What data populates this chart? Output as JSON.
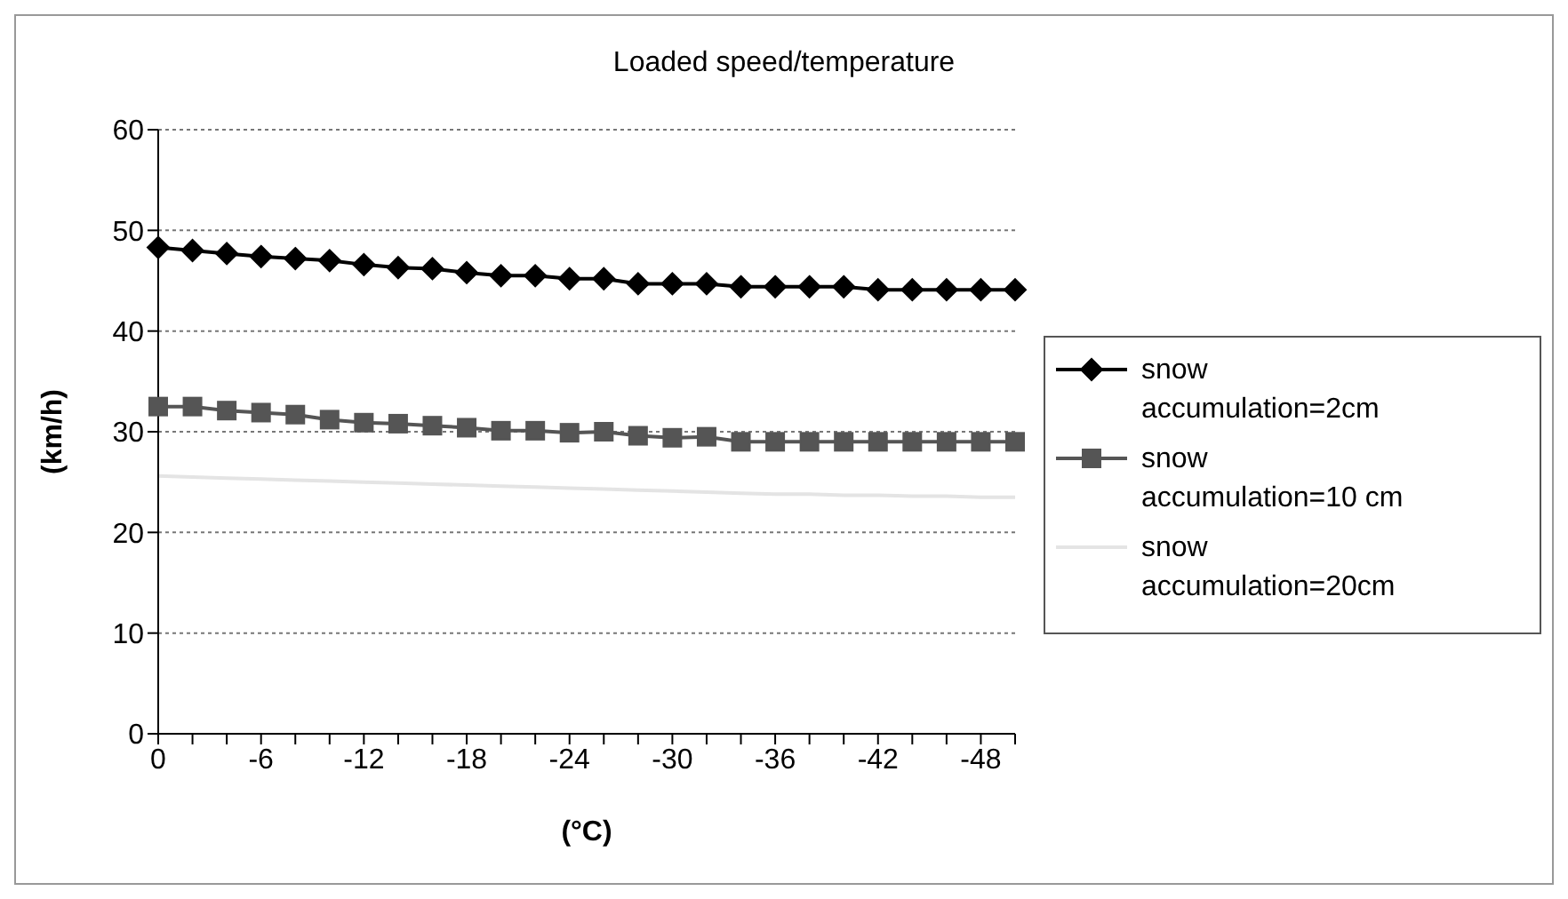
{
  "chart_data": {
    "type": "line",
    "title": "Loaded speed/temperature",
    "xlabel": "(°C)",
    "ylabel": "(km/h)",
    "categories": [
      "0",
      null,
      null,
      "-6",
      null,
      null,
      "-12",
      null,
      null,
      "-18",
      null,
      null,
      "-24",
      null,
      null,
      "-30",
      null,
      null,
      "-36",
      null,
      null,
      "-42",
      null,
      null,
      "-48",
      null
    ],
    "series": [
      {
        "name": "snow accumulation=2cm",
        "color": "#000000",
        "marker": "diamond",
        "values": [
          48.3,
          48.0,
          47.7,
          47.4,
          47.2,
          47.0,
          46.6,
          46.3,
          46.2,
          45.8,
          45.5,
          45.5,
          45.2,
          45.2,
          44.7,
          44.7,
          44.7,
          44.4,
          44.4,
          44.4,
          44.4,
          44.1,
          44.1,
          44.1,
          44.1,
          44.1
        ]
      },
      {
        "name": "snow accumulation=10 cm",
        "color": "#555555",
        "marker": "square",
        "values": [
          32.5,
          32.5,
          32.1,
          31.9,
          31.7,
          31.2,
          30.9,
          30.8,
          30.6,
          30.4,
          30.1,
          30.1,
          29.9,
          30.0,
          29.6,
          29.4,
          29.5,
          29.0,
          29.0,
          29.0,
          29.0,
          29.0,
          29.0,
          29.0,
          29.0,
          29.0
        ]
      },
      {
        "name": "snow accumulation=20cm",
        "color": "#e4e4e4",
        "marker": "none",
        "values": [
          25.6,
          25.5,
          25.4,
          25.3,
          25.2,
          25.1,
          25.0,
          24.9,
          24.8,
          24.7,
          24.6,
          24.5,
          24.4,
          24.3,
          24.2,
          24.1,
          24.0,
          23.9,
          23.8,
          23.8,
          23.7,
          23.7,
          23.6,
          23.6,
          23.5,
          23.5
        ]
      }
    ],
    "ylim": [
      0,
      60
    ],
    "yticks": [
      0,
      10,
      20,
      30,
      40,
      50,
      60
    ],
    "grid": "y",
    "legend": "right",
    "line_style": "solid"
  }
}
